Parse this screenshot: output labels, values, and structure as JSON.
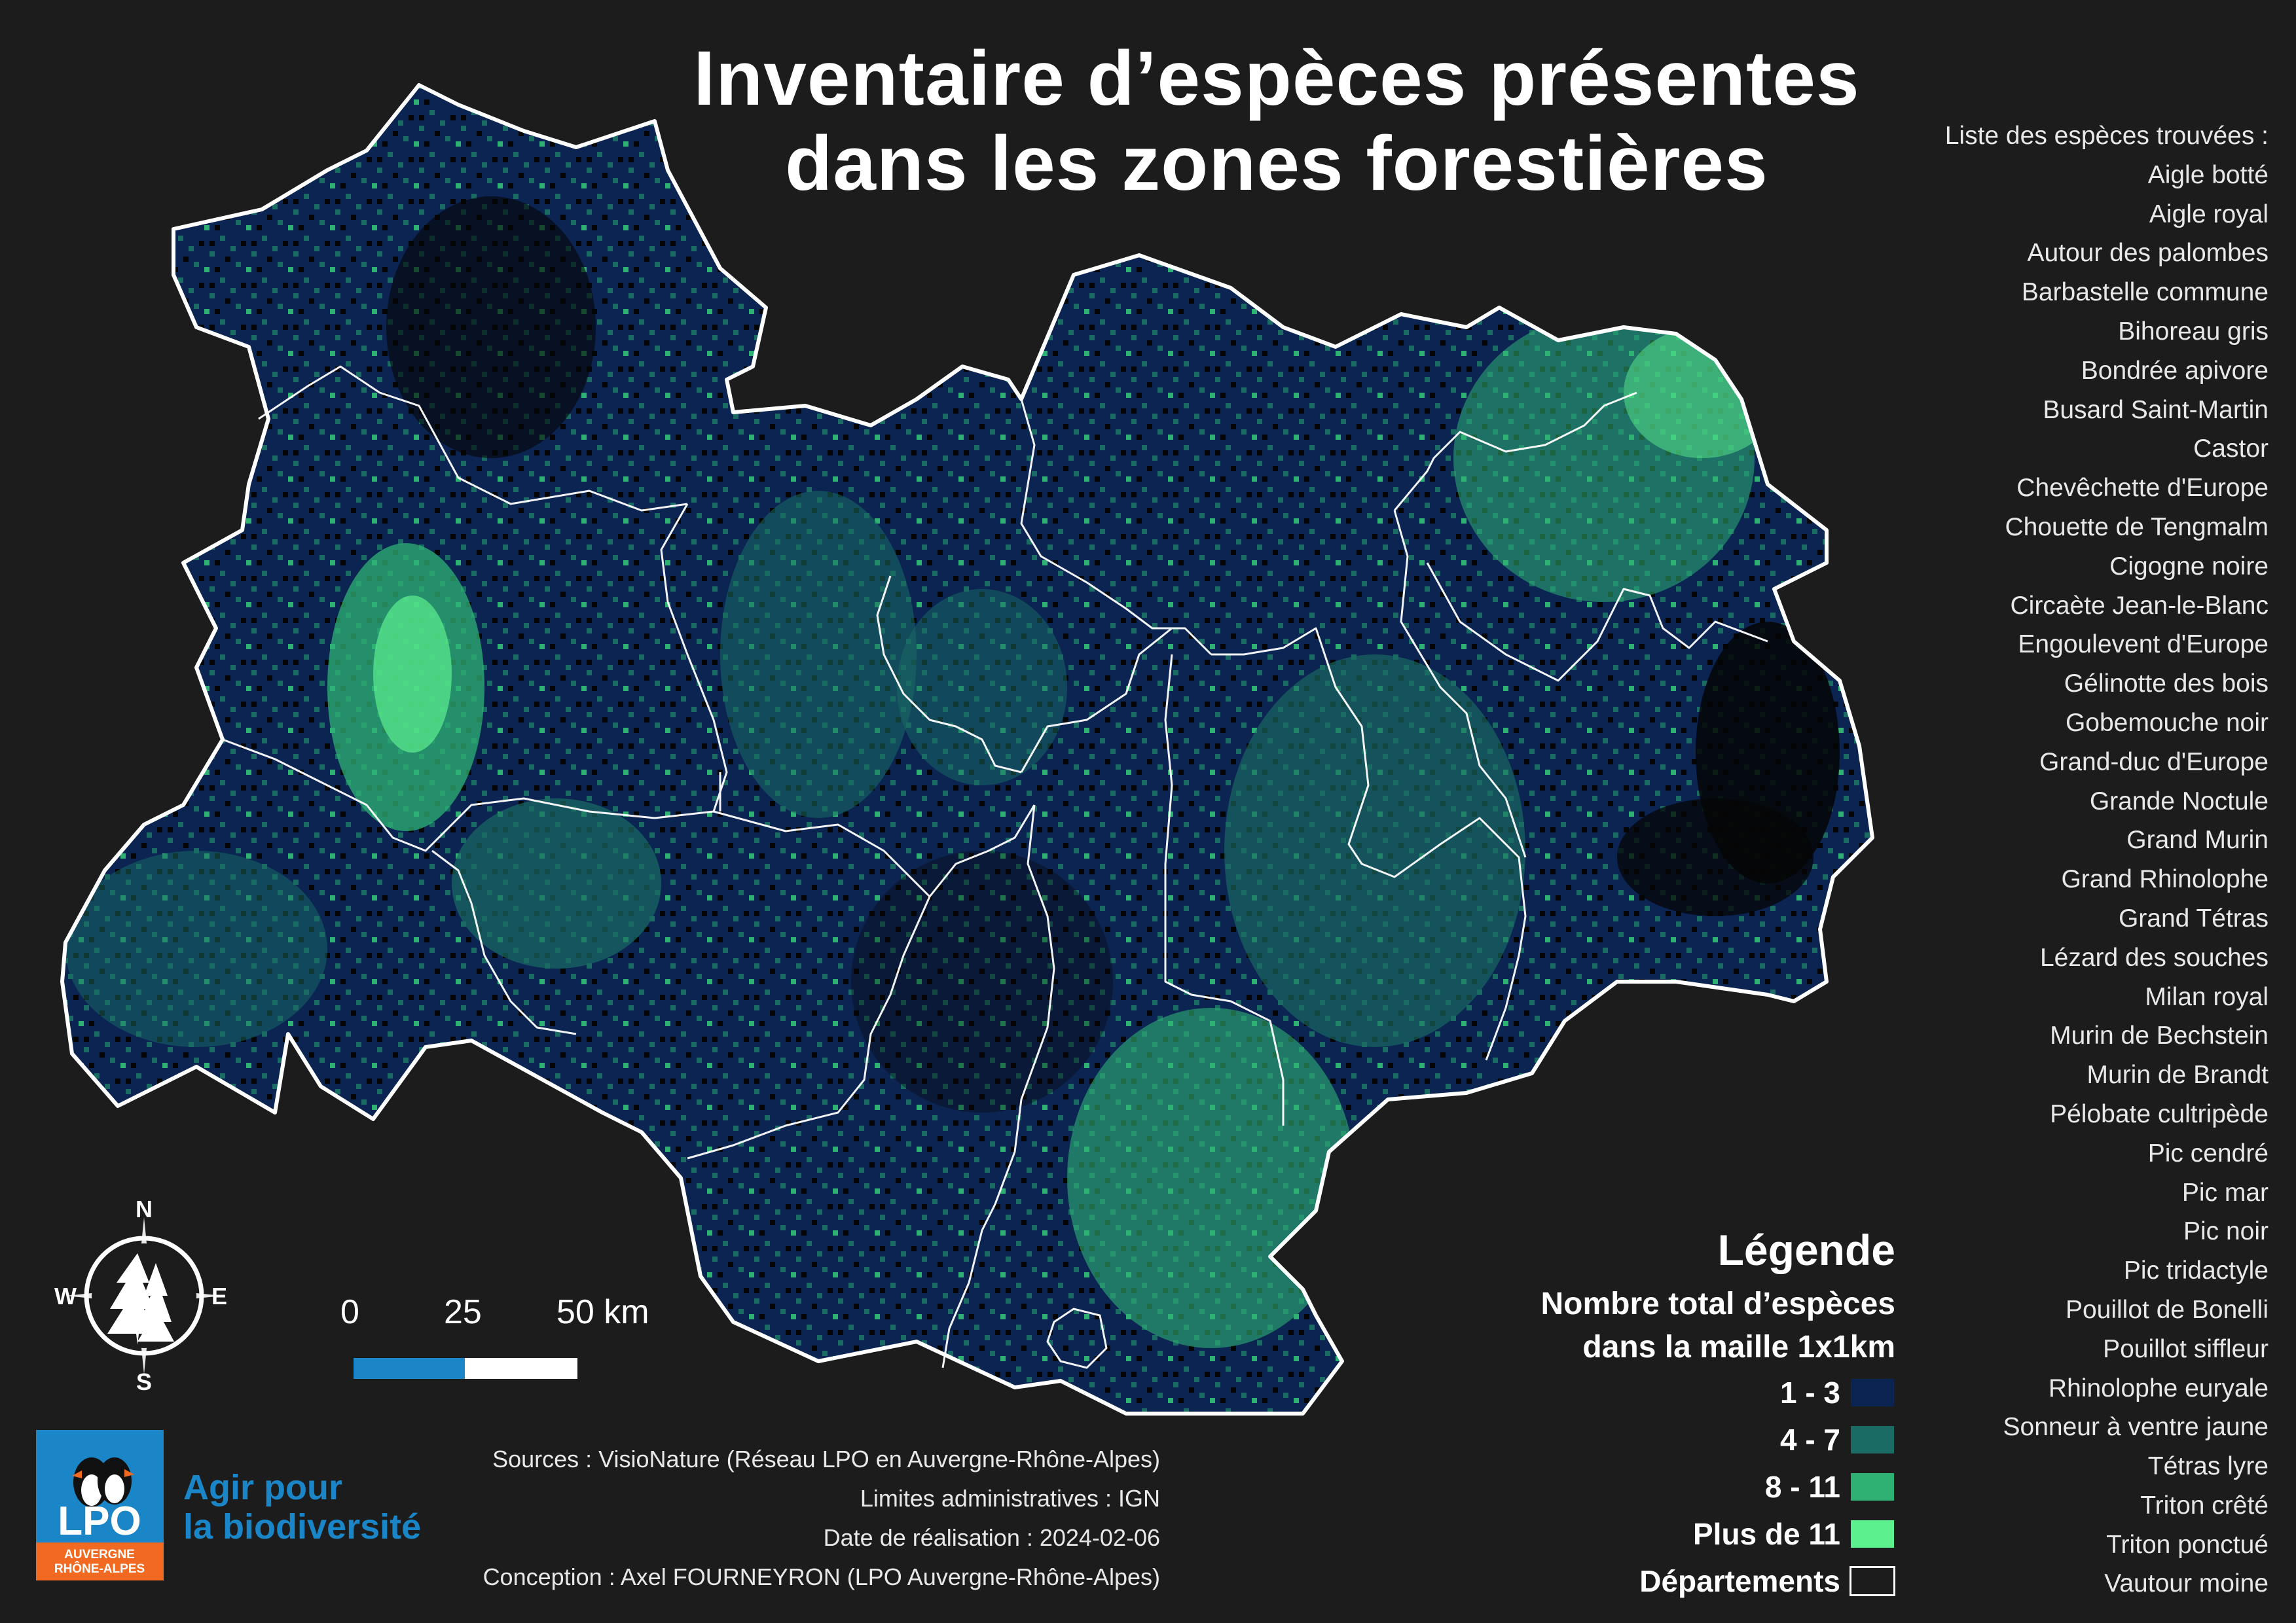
{
  "title": {
    "line1": "Inventaire d’espèces présentes",
    "line2": "dans les zones forestières"
  },
  "species": {
    "heading": "Liste des espèces trouvées :",
    "items": [
      "Aigle botté",
      "Aigle royal",
      "Autour des palombes",
      "Barbastelle commune",
      "Bihoreau gris",
      "Bondrée apivore",
      "Busard Saint-Martin",
      "Castor",
      "Chevêchette d'Europe",
      "Chouette de Tengmalm",
      "Cigogne noire",
      "Circaète Jean-le-Blanc",
      "Engoulevent d'Europe",
      "Gélinotte des bois",
      "Gobemouche noir",
      "Grand-duc d'Europe",
      "Grande Noctule",
      "Grand Murin",
      "Grand Rhinolophe",
      "Grand Tétras",
      "Lézard des souches",
      "Milan royal",
      "Murin de Bechstein",
      "Murin de Brandt",
      "Pélobate cultripède",
      "Pic cendré",
      "Pic mar",
      "Pic noir",
      "Pic tridactyle",
      "Pouillot de Bonelli",
      "Pouillot siffleur",
      "Rhinolophe euryale",
      "Sonneur à ventre jaune",
      "Tétras lyre",
      "Triton crêté",
      "Triton ponctué",
      "Vautour moine"
    ]
  },
  "legend": {
    "title": "Légende",
    "subtitle_line1": "Nombre total d’espèces",
    "subtitle_line2": "dans la maille 1x1km",
    "classes": [
      {
        "label": "1 - 3",
        "color": "#0b2452"
      },
      {
        "label": "4 - 7",
        "color": "#1a6b63"
      },
      {
        "label": "8 - 11",
        "color": "#2fb174"
      },
      {
        "label": "Plus de 11",
        "color": "#5cf08e"
      }
    ],
    "departements_label": "Départements"
  },
  "scale": {
    "t0": "0",
    "t1": "25",
    "t2": "50 km"
  },
  "compass": {
    "n": "N",
    "s": "S",
    "e": "E",
    "w": "W"
  },
  "sources": {
    "line1": "Sources :  VisioNature (Réseau LPO en Auvergne-Rhône-Alpes)",
    "line2": "Limites administratives : IGN",
    "line3": "Date de réalisation : 2024-02-06",
    "line4": "Conception :  Axel FOURNEYRON (LPO Auvergne-Rhône-Alpes)"
  },
  "logo": {
    "name": "LPO",
    "region_line1": "AUVERGNE",
    "region_line2": "RHÔNE-ALPES",
    "tagline_line1": "Agir pour",
    "tagline_line2": "la biodiversité",
    "blue": "#1a86c8",
    "orange": "#f26a21"
  },
  "colors": {
    "background": "#1c1c1c",
    "no_data": "#050505"
  }
}
